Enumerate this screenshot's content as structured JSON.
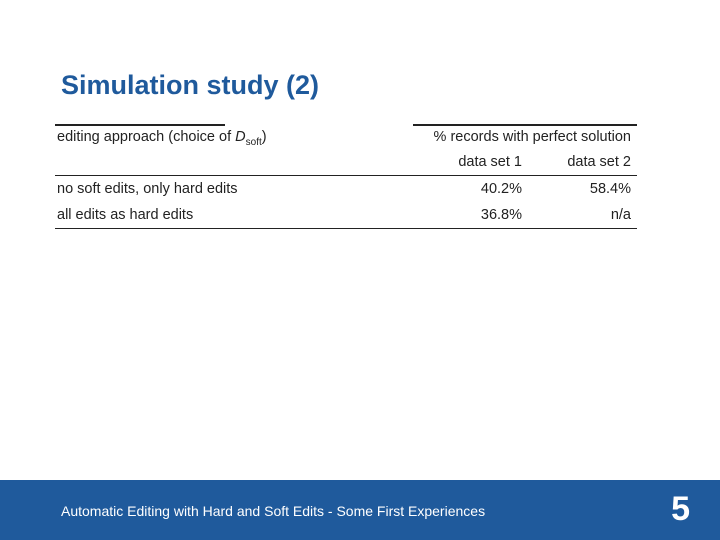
{
  "slide": {
    "title": "Simulation study (2)",
    "colors": {
      "accent": "#1f5a9c",
      "footer_bg": "#1f5a9c",
      "text": "#222222"
    }
  },
  "table": {
    "header": {
      "approach_label": "editing approach (choice of ",
      "approach_var": "D",
      "approach_sub": "soft",
      "approach_close": ")",
      "span_label": "% records with perfect solution",
      "col1": "data set 1",
      "col2": "data set 2"
    },
    "rows": [
      {
        "label": "no soft edits, only hard edits",
        "d1": "40.2%",
        "d2": "58.4%"
      },
      {
        "label": "all edits as hard edits",
        "d1": "36.8%",
        "d2": "n/a"
      }
    ]
  },
  "footer": {
    "text": "Automatic Editing with Hard and Soft Edits - Some First Experiences",
    "page_number": "5"
  }
}
